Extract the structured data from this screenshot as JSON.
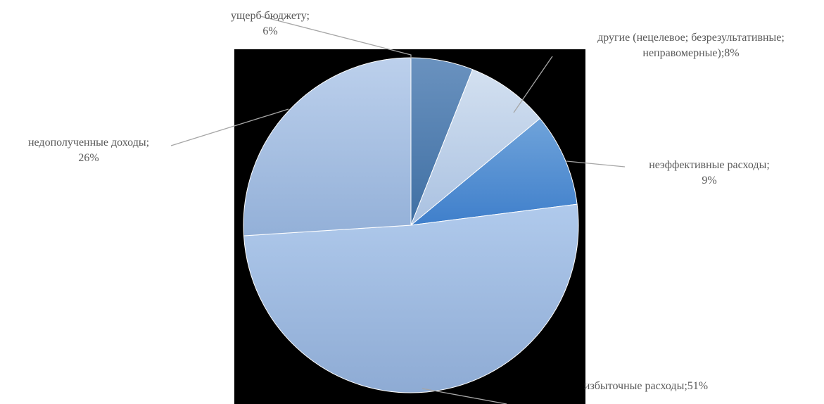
{
  "chart_data": {
    "type": "pie",
    "start_angle_deg": 0,
    "direction": "clockwise",
    "slices": [
      {
        "category": "ущерб бюджету",
        "value": 6,
        "label_lines": [
          "ущерб бюджету;",
          "6%"
        ],
        "color_top": "#6a92bf",
        "color_bottom": "#3f6fa3"
      },
      {
        "category": "другие (нецелевое; безрезультативные; неправомерные)",
        "value": 8,
        "label_lines": [
          "другие (нецелевое; безрезультативные;",
          "неправомерные);8%"
        ],
        "color_top": "#d3e0f0",
        "color_bottom": "#a9c1e1"
      },
      {
        "category": "неэффективные расходы",
        "value": 9,
        "label_lines": [
          "неэффективные расходы;",
          "9%"
        ],
        "color_top": "#6fa3da",
        "color_bottom": "#3f7fcb"
      },
      {
        "category": "избыточные расходы",
        "value": 51,
        "label_lines": [
          "избыточные расходы;51%"
        ],
        "color_top": "#b0caec",
        "color_bottom": "#8eabd4"
      },
      {
        "category": "недополученные доходы",
        "value": 26,
        "label_lines": [
          "недополученные доходы;",
          "26%"
        ],
        "color_top": "#bcd0ec",
        "color_bottom": "#93b0d8"
      }
    ],
    "legend": "none"
  }
}
